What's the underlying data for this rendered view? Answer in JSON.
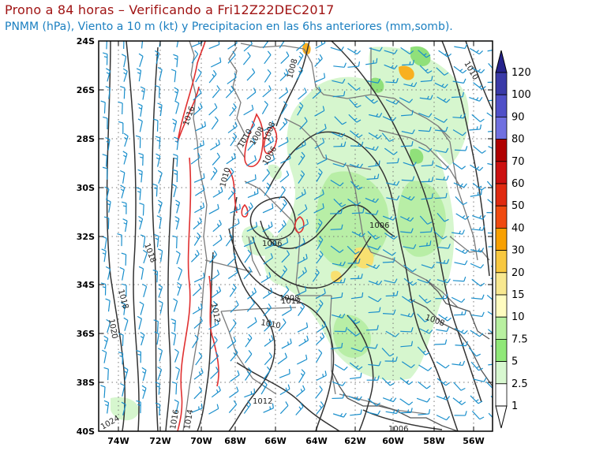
{
  "title_line1": "Prono a 84 horas – Verificando a Fri12Z22DEC2017",
  "title_line2": "PNMM (hPa), Viento a 10 m (kt) y Precipitacion en las 6hs anteriores (mm,somb).",
  "lat_labels": [
    "24S",
    "26S",
    "28S",
    "30S",
    "32S",
    "34S",
    "36S",
    "38S",
    "40S"
  ],
  "lon_labels": [
    "74W",
    "72W",
    "70W",
    "68W",
    "66W",
    "64W",
    "62W",
    "60W",
    "58W",
    "56W"
  ],
  "colorbar": {
    "labels": [
      "120",
      "100",
      "90",
      "80",
      "70",
      "60",
      "50",
      "40",
      "30",
      "20",
      "15",
      "10",
      "7.5",
      "5",
      "2.5",
      "1"
    ],
    "colors": [
      "#26238c",
      "#3a3aa8",
      "#5050c8",
      "#7070e0",
      "#b00000",
      "#cc1010",
      "#e02a10",
      "#f04a10",
      "#f8a000",
      "#f8c840",
      "#f8e890",
      "#fffcc0",
      "#b8f0a0",
      "#90e878",
      "#d8f8d0",
      "#ffffff"
    ]
  },
  "isobar_labels": [
    {
      "text": "1016"
    },
    {
      "text": "1018"
    },
    {
      "text": "1018"
    },
    {
      "text": "1020"
    },
    {
      "text": "1024"
    },
    {
      "text": "1016"
    },
    {
      "text": "1014"
    },
    {
      "text": "1012"
    },
    {
      "text": "1012"
    },
    {
      "text": "1010"
    },
    {
      "text": "1010"
    },
    {
      "text": "1010"
    },
    {
      "text": "1008"
    },
    {
      "text": "1008"
    },
    {
      "text": "1006"
    },
    {
      "text": "1006"
    },
    {
      "text": "1006"
    },
    {
      "text": "1008"
    },
    {
      "text": "1006"
    },
    {
      "text": "1008"
    },
    {
      "text": "1010"
    },
    {
      "text": "1012"
    },
    {
      "text": "1008"
    }
  ]
}
